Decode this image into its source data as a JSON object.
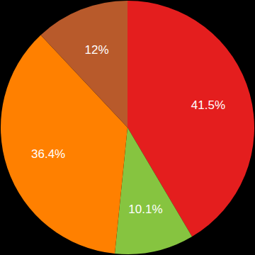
{
  "chart_data": {
    "type": "pie",
    "values": [
      41.5,
      10.1,
      36.4,
      12
    ],
    "value_labels": [
      "41.5%",
      "10.1%",
      "36.4%",
      "12%"
    ],
    "colors": [
      "#e41e1e",
      "#86c440",
      "#ff8000",
      "#b85a2b"
    ],
    "data_labels": true
  }
}
